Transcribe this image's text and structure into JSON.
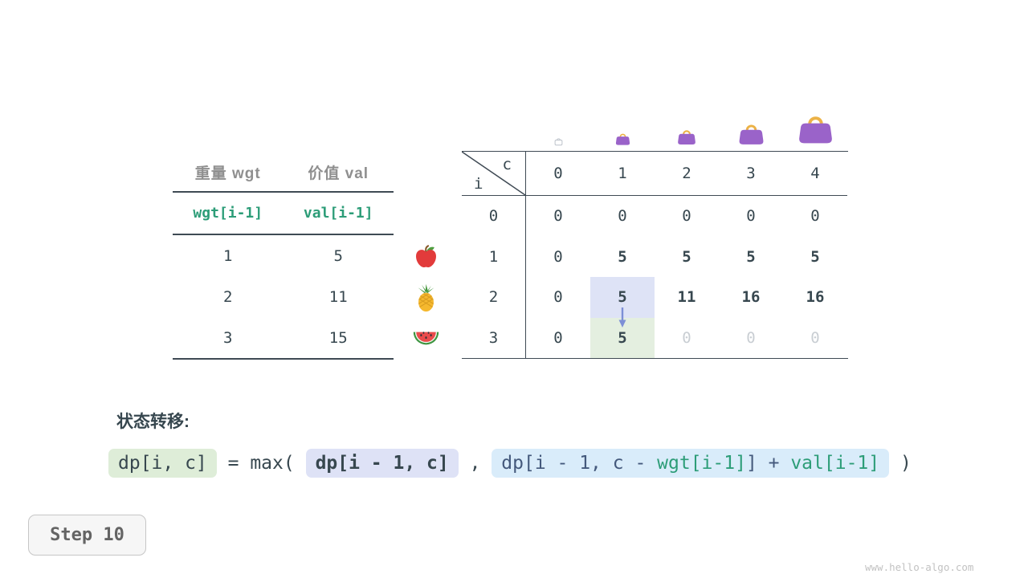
{
  "meta": {
    "step_label": "Step 10",
    "watermark": "www.hello-algo.com"
  },
  "items_table": {
    "col_headers": [
      "重量 wgt",
      "价值 val"
    ],
    "sub_headers": [
      "wgt[i-1]",
      "val[i-1]"
    ],
    "rows": [
      {
        "wgt": "1",
        "val": "5",
        "icon": "apple-icon"
      },
      {
        "wgt": "2",
        "val": "11",
        "icon": "pineapple-icon"
      },
      {
        "wgt": "3",
        "val": "15",
        "icon": "watermelon-icon"
      }
    ]
  },
  "dp_table": {
    "corner": {
      "col_var": "c",
      "row_var": "i"
    },
    "col_headers": [
      "0",
      "1",
      "2",
      "3",
      "4"
    ],
    "row_headers": [
      "0",
      "1",
      "2",
      "3"
    ],
    "cells": [
      [
        "0",
        "0",
        "0",
        "0",
        "0"
      ],
      [
        "0",
        "5",
        "5",
        "5",
        "5"
      ],
      [
        "0",
        "5",
        "11",
        "16",
        "16"
      ],
      [
        "0",
        "5",
        "0",
        "0",
        "0"
      ]
    ],
    "cell_styles": {
      "1,1": "bold",
      "1,2": "bold",
      "1,3": "bold",
      "1,4": "bold",
      "2,1": "bold hl-blue",
      "2,2": "bold",
      "2,3": "bold",
      "2,4": "bold",
      "3,1": "bold hl-green",
      "3,2": "dim",
      "3,3": "dim",
      "3,4": "dim"
    },
    "bags": [
      "bag-outline",
      "bag-1",
      "bag-2",
      "bag-3",
      "bag-4"
    ]
  },
  "transition": {
    "label": "状态转移:",
    "parts": [
      {
        "type": "chip",
        "style": "green",
        "segments": [
          {
            "t": "dp[i, c]",
            "c": "ink"
          }
        ]
      },
      {
        "type": "text",
        "t": " = max( "
      },
      {
        "type": "chip",
        "style": "lavender",
        "segments": [
          {
            "t": "dp[i - 1, c]",
            "c": "ink"
          }
        ]
      },
      {
        "type": "text",
        "t": " , "
      },
      {
        "type": "chip",
        "style": "blue",
        "segments": [
          {
            "t": "dp[i - 1, c - ",
            "c": "navy"
          },
          {
            "t": "wgt[i-1]",
            "c": "teal"
          },
          {
            "t": "] + ",
            "c": "navy"
          },
          {
            "t": "val[i-1]",
            "c": "teal"
          }
        ]
      },
      {
        "type": "text",
        "t": " )"
      }
    ]
  },
  "colors": {
    "teal": "#2d9d78",
    "ink": "#37474f",
    "navy": "#44597c",
    "dim_value": "#c9ced3",
    "highlight_blue": "#dee3f6",
    "highlight_green": "#e4efe0",
    "chip_green": "#deedd8",
    "chip_lavender": "#dee2f6",
    "chip_blue": "#d9ecfa",
    "arrow": "#7d8fd6",
    "bag_purple": "#9a63c9",
    "bag_handle": "#ecb246"
  }
}
